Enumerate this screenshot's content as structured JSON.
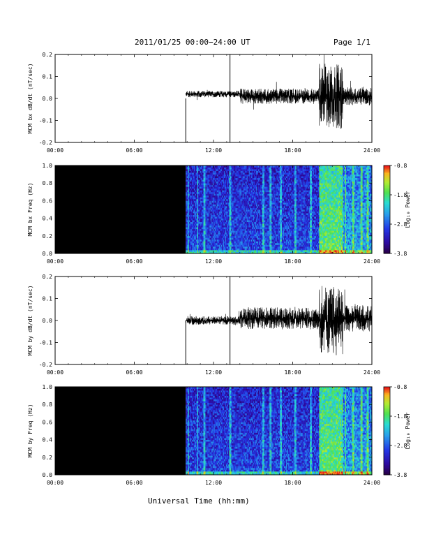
{
  "header": {
    "title": "2011/01/25  00:00−24:00 UT",
    "page": "Page 1/1"
  },
  "xlabel": "Universal Time (hh:mm)",
  "colors": {
    "black": "#000000",
    "dark_blue": "#1f2fbf",
    "blue": "#2f55e6",
    "cyan": "#25d4e0",
    "green": "#62e04a",
    "yellow_green": "#b6ef3a"
  },
  "chart_data": [
    {
      "id": "bx-ts",
      "type": "line",
      "ylabel": "MCM bx dB/dt (nT/sec)",
      "xlim": [
        0,
        24
      ],
      "ylim": [
        -0.2,
        0.2
      ],
      "xticks": [
        "00:00",
        "06:00",
        "12:00",
        "18:00",
        "24:00"
      ],
      "yticks": [
        "-0.2",
        "-0.1",
        "0.0",
        "0.1",
        "0.2"
      ],
      "data_start_hour": 9.9,
      "segments": [
        {
          "x_start": 9.9,
          "x_end": 14.0,
          "center": 0.02,
          "amplitude": 0.015
        },
        {
          "x_start": 14.0,
          "x_end": 20.0,
          "center": 0.01,
          "amplitude": 0.035
        },
        {
          "x_start": 20.0,
          "x_end": 21.8,
          "center": 0.01,
          "amplitude": 0.15
        },
        {
          "x_start": 21.8,
          "x_end": 24.0,
          "center": 0.01,
          "amplitude": 0.04
        }
      ],
      "spikes": [
        {
          "x": 9.9,
          "y_min": -0.2,
          "y_max": 0.0
        },
        {
          "x": 13.25,
          "y_min": -0.2,
          "y_max": 0.2
        }
      ]
    },
    {
      "id": "bx-spec",
      "type": "heatmap",
      "ylabel": "MCM bx Freq (Hz)",
      "xlim": [
        0,
        24
      ],
      "ylim": [
        0.0,
        1.0
      ],
      "xticks": [
        "00:00",
        "06:00",
        "12:00",
        "18:00",
        "24:00"
      ],
      "yticks": [
        "0.0",
        "0.2",
        "0.4",
        "0.6",
        "0.8",
        "1.0"
      ],
      "no_data_until_hour": 9.9,
      "color_axis": {
        "label": "Log₁₀ Power",
        "range": [
          -3.8,
          -0.8
        ],
        "ticks": [
          "-0.8",
          "-1.8",
          "-2.8",
          "-3.8"
        ]
      },
      "bands": [
        {
          "x_start": 9.9,
          "x_end": 20.0,
          "level": -2.9
        },
        {
          "x_start": 20.0,
          "x_end": 21.8,
          "level": -1.7
        },
        {
          "x_start": 21.8,
          "x_end": 24.0,
          "level": -2.4
        }
      ],
      "vertical_stripes_hours": [
        10.1,
        10.8,
        11.3,
        13.25,
        15.8,
        16.3,
        17.1,
        18.2,
        19.4,
        22.0,
        22.6,
        23.2,
        23.7
      ]
    },
    {
      "id": "by-ts",
      "type": "line",
      "ylabel": "MCM by dB/dt (nT/sec)",
      "xlim": [
        0,
        24
      ],
      "ylim": [
        -0.2,
        0.2
      ],
      "xticks": [
        "00:00",
        "06:00",
        "12:00",
        "18:00",
        "24:00"
      ],
      "yticks": [
        "-0.2",
        "-0.1",
        "0.0",
        "0.1",
        "0.2"
      ],
      "data_start_hour": 9.9,
      "segments": [
        {
          "x_start": 9.9,
          "x_end": 14.0,
          "center": 0.0,
          "amplitude": 0.02
        },
        {
          "x_start": 14.0,
          "x_end": 20.0,
          "center": 0.01,
          "amplitude": 0.05
        },
        {
          "x_start": 20.0,
          "x_end": 21.8,
          "center": 0.0,
          "amplitude": 0.16
        },
        {
          "x_start": 21.8,
          "x_end": 24.0,
          "center": 0.01,
          "amplitude": 0.06
        }
      ],
      "spikes": [
        {
          "x": 9.9,
          "y_min": -0.2,
          "y_max": 0.0
        },
        {
          "x": 13.25,
          "y_min": -0.2,
          "y_max": 0.2
        }
      ]
    },
    {
      "id": "by-spec",
      "type": "heatmap",
      "ylabel": "MCM by Freq (Hz)",
      "xlim": [
        0,
        24
      ],
      "ylim": [
        0.0,
        1.0
      ],
      "xticks": [
        "00:00",
        "06:00",
        "12:00",
        "18:00",
        "24:00"
      ],
      "yticks": [
        "0.0",
        "0.2",
        "0.4",
        "0.6",
        "0.8",
        "1.0"
      ],
      "no_data_until_hour": 9.9,
      "color_axis": {
        "label": "Log₁₀ Power",
        "range": [
          -3.8,
          -0.8
        ],
        "ticks": [
          "-0.8",
          "-1.8",
          "-2.8",
          "-3.8"
        ]
      },
      "bands": [
        {
          "x_start": 9.9,
          "x_end": 20.0,
          "level": -2.9
        },
        {
          "x_start": 20.0,
          "x_end": 21.8,
          "level": -1.7
        },
        {
          "x_start": 21.8,
          "x_end": 24.0,
          "level": -2.4
        }
      ],
      "vertical_stripes_hours": [
        10.1,
        10.8,
        11.3,
        13.25,
        15.8,
        16.3,
        17.1,
        18.2,
        19.4,
        22.0,
        22.6,
        23.2,
        23.7
      ]
    }
  ]
}
